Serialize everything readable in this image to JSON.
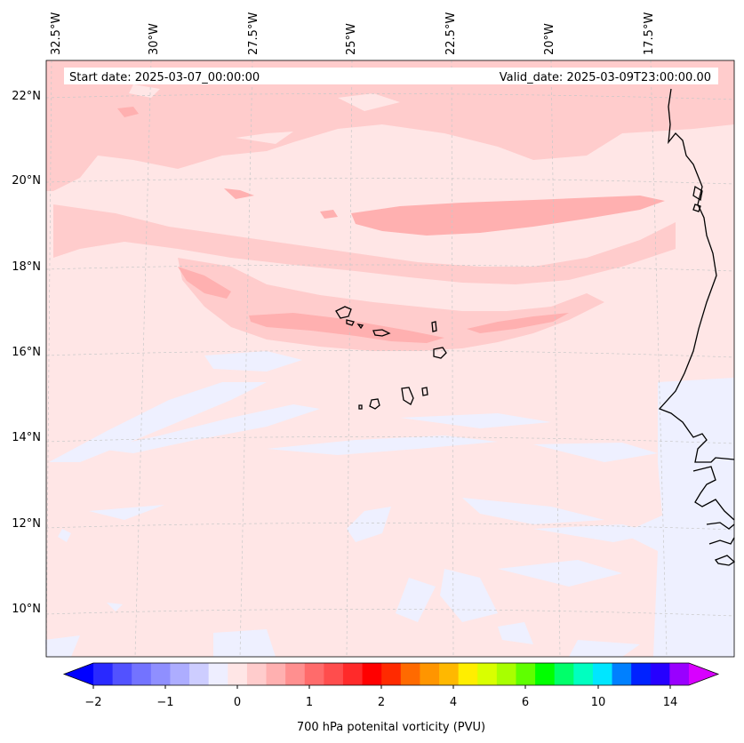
{
  "header": {
    "start_label": "Start date: 2025-03-07_00:00:00",
    "valid_label": "Valid_date: 2025-03-09T23:00:00.00"
  },
  "map": {
    "longitude_labels": [
      "32.5°W",
      "30°W",
      "27.5°W",
      "25°W",
      "22.5°W",
      "20°W",
      "17.5°W"
    ],
    "latitude_labels": [
      "22°N",
      "20°N",
      "18°N",
      "16°N",
      "14°N",
      "12°N",
      "10°N"
    ],
    "colors": {
      "background_field": "#ffe6e6",
      "low_blue_field": "#eef0ff",
      "moderate_pink": "#ffcccc",
      "high_pink": "#ffb0b0",
      "coastline": "#000000",
      "gridline": "#c8c8c8"
    }
  },
  "colorbar": {
    "title": "700 hPa potenital vorticity (PVU)",
    "tick_labels": [
      "−2",
      "−1",
      "0",
      "1",
      "2",
      "4",
      "6",
      "10",
      "14"
    ],
    "colors": [
      "#0000ff",
      "#2929ff",
      "#5252ff",
      "#7373ff",
      "#8f8fff",
      "#adadff",
      "#cdcdff",
      "#eeeeff",
      "#ffe6e6",
      "#ffcccc",
      "#ffb0b0",
      "#ff8f8f",
      "#ff6b6b",
      "#ff4d4d",
      "#ff2a2a",
      "#ff0000",
      "#ff2a00",
      "#ff6a00",
      "#ff9500",
      "#ffb800",
      "#ffee00",
      "#d9ff00",
      "#a8ff00",
      "#5fff00",
      "#00ff00",
      "#00ff6a",
      "#00ffc0",
      "#00e6ff",
      "#0080ff",
      "#0022ff",
      "#2600ff",
      "#9900ff",
      "#d800ff"
    ]
  }
}
